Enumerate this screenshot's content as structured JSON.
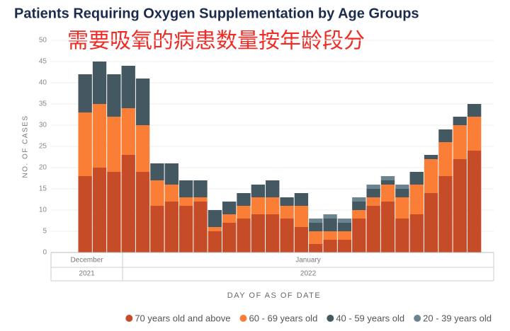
{
  "chart_data": {
    "type": "stacked_bar",
    "title": "Patients Requiring Oxygen Supplementation by Age Groups",
    "subtitle": "需要吸氧的病患数量按年龄段分",
    "ylabel": "NO. OF CASES",
    "xlabel": "DAY OF AS OF DATE",
    "ylim": [
      0,
      50
    ],
    "yticks": [
      0,
      5,
      10,
      15,
      20,
      25,
      30,
      35,
      40,
      45,
      50
    ],
    "grid": true,
    "categories": [
      null,
      null,
      null,
      null,
      null,
      null,
      null,
      null,
      null,
      null,
      null,
      null,
      null,
      null,
      null,
      null,
      null,
      null,
      null,
      null,
      null,
      null,
      null,
      null,
      null,
      null,
      null,
      null
    ],
    "x_groups": [
      {
        "month": "December",
        "year": "2021"
      },
      {
        "month": "January",
        "year": "2022"
      }
    ],
    "legend": "bottom-right",
    "series": [
      {
        "name": "70 years old and above",
        "color": "#c64b27",
        "values": [
          18,
          20,
          19,
          23,
          19,
          11,
          12,
          11,
          12,
          5,
          7,
          8,
          9,
          9,
          8,
          6,
          2,
          3,
          3,
          8,
          11,
          12,
          8,
          9,
          14,
          18,
          22,
          24
        ]
      },
      {
        "name": "60 - 69 years old",
        "color": "#fb7e36",
        "values": [
          15,
          15,
          13,
          11,
          11,
          6,
          4,
          2,
          1,
          1,
          2,
          3,
          4,
          4,
          3,
          5,
          3,
          2,
          2,
          2,
          2,
          4,
          5,
          7,
          8,
          8,
          8,
          8
        ]
      },
      {
        "name": "40 - 59 years old",
        "color": "#435861",
        "values": [
          9,
          10,
          10,
          10,
          11,
          4,
          5,
          4,
          4,
          4,
          3,
          3,
          3,
          4,
          2,
          3,
          2,
          3,
          2,
          2,
          2,
          1,
          2,
          3,
          1,
          3,
          2,
          3
        ]
      },
      {
        "name": "20 - 39 years old",
        "color": "#6b8590",
        "values": [
          0,
          0,
          0,
          0,
          0,
          0,
          0,
          0,
          0,
          0,
          0,
          0,
          0,
          0,
          0,
          0,
          1,
          1,
          1,
          1,
          1,
          1,
          1,
          0,
          0,
          0,
          0,
          0
        ]
      }
    ]
  }
}
